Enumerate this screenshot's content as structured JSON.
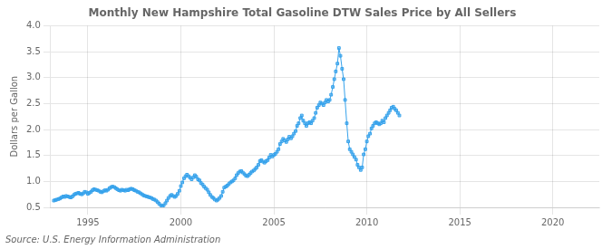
{
  "chart_data": {
    "type": "line",
    "title": "Monthly New Hampshire Total Gasoline DTW Sales Price by All Sellers",
    "ylabel": "Dollars per Gallon",
    "annotation": "Source: U.S. Energy Information Administration",
    "marker": "square",
    "line_style": "solid",
    "grid": true,
    "xlim": [
      1993.0,
      2022.5
    ],
    "xticks": [
      1995,
      2000,
      2005,
      2010,
      2015,
      2020
    ],
    "ylim": [
      0.5,
      4.0
    ],
    "yticks": [
      0.5,
      {
        "value": 1.0,
        "label": "1.0"
      },
      1.5,
      {
        "value": 2.0,
        "label": "2.0"
      },
      2.5,
      {
        "value": 3.0,
        "label": "3.0"
      },
      3.5,
      {
        "value": 4.0,
        "label": "4.0"
      }
    ],
    "x": [
      1993.17,
      1993.25,
      1993.33,
      1993.42,
      1993.5,
      1993.58,
      1993.67,
      1993.75,
      1993.83,
      1993.92,
      1994.0,
      1994.08,
      1994.17,
      1994.25,
      1994.33,
      1994.42,
      1994.5,
      1994.58,
      1994.67,
      1994.75,
      1994.83,
      1994.92,
      1995.0,
      1995.08,
      1995.17,
      1995.25,
      1995.33,
      1995.42,
      1995.5,
      1995.58,
      1995.67,
      1995.75,
      1995.83,
      1995.92,
      1996.0,
      1996.08,
      1996.17,
      1996.25,
      1996.33,
      1996.42,
      1996.5,
      1996.58,
      1996.67,
      1996.75,
      1996.83,
      1996.92,
      1997.0,
      1997.08,
      1997.17,
      1997.25,
      1997.33,
      1997.42,
      1997.5,
      1997.58,
      1997.67,
      1997.75,
      1997.83,
      1997.92,
      1998.0,
      1998.08,
      1998.17,
      1998.25,
      1998.33,
      1998.42,
      1998.5,
      1998.58,
      1998.67,
      1998.75,
      1998.83,
      1998.92,
      1999.0,
      1999.08,
      1999.17,
      1999.25,
      1999.33,
      1999.42,
      1999.5,
      1999.58,
      1999.67,
      1999.75,
      1999.83,
      1999.92,
      2000.0,
      2000.08,
      2000.17,
      2000.25,
      2000.33,
      2000.42,
      2000.5,
      2000.58,
      2000.67,
      2000.75,
      2000.83,
      2000.92,
      2001.0,
      2001.08,
      2001.17,
      2001.25,
      2001.33,
      2001.42,
      2001.5,
      2001.58,
      2001.67,
      2001.75,
      2001.83,
      2001.92,
      2002.0,
      2002.08,
      2002.17,
      2002.25,
      2002.33,
      2002.42,
      2002.5,
      2002.58,
      2002.67,
      2002.75,
      2002.83,
      2002.92,
      2003.0,
      2003.08,
      2003.17,
      2003.25,
      2003.33,
      2003.42,
      2003.5,
      2003.58,
      2003.67,
      2003.75,
      2003.83,
      2003.92,
      2004.0,
      2004.08,
      2004.17,
      2004.25,
      2004.33,
      2004.42,
      2004.5,
      2004.58,
      2004.67,
      2004.75,
      2004.83,
      2004.92,
      2005.0,
      2005.08,
      2005.17,
      2005.25,
      2005.33,
      2005.42,
      2005.5,
      2005.58,
      2005.67,
      2005.75,
      2005.83,
      2005.92,
      2006.0,
      2006.08,
      2006.17,
      2006.25,
      2006.33,
      2006.42,
      2006.5,
      2006.58,
      2006.67,
      2006.75,
      2006.83,
      2006.92,
      2007.0,
      2007.08,
      2007.17,
      2007.25,
      2007.33,
      2007.42,
      2007.5,
      2007.58,
      2007.67,
      2007.75,
      2007.83,
      2007.92,
      2008.0,
      2008.08,
      2008.17,
      2008.25,
      2008.33,
      2008.42,
      2008.5,
      2008.58,
      2008.67,
      2008.75,
      2008.83,
      2008.92,
      2009.0,
      2009.08,
      2009.17,
      2009.25,
      2009.33,
      2009.42,
      2009.5,
      2009.58,
      2009.67,
      2009.75,
      2009.83,
      2009.92,
      2010.0,
      2010.08,
      2010.17,
      2010.25,
      2010.33,
      2010.42,
      2010.5,
      2010.58,
      2010.67,
      2010.75,
      2010.83,
      2010.92,
      2011.0,
      2011.08,
      2011.17,
      2011.25,
      2011.33,
      2011.42,
      2011.5,
      2011.58,
      2011.67,
      2011.75
    ],
    "values": [
      0.63,
      0.64,
      0.65,
      0.66,
      0.67,
      0.69,
      0.71,
      0.7,
      0.72,
      0.71,
      0.7,
      0.69,
      0.71,
      0.74,
      0.76,
      0.77,
      0.78,
      0.76,
      0.75,
      0.77,
      0.8,
      0.79,
      0.76,
      0.78,
      0.8,
      0.83,
      0.85,
      0.84,
      0.83,
      0.82,
      0.8,
      0.79,
      0.81,
      0.83,
      0.82,
      0.84,
      0.87,
      0.89,
      0.9,
      0.89,
      0.87,
      0.85,
      0.83,
      0.82,
      0.84,
      0.83,
      0.82,
      0.84,
      0.83,
      0.85,
      0.86,
      0.85,
      0.83,
      0.82,
      0.8,
      0.79,
      0.77,
      0.75,
      0.73,
      0.72,
      0.71,
      0.7,
      0.69,
      0.68,
      0.66,
      0.65,
      0.63,
      0.6,
      0.57,
      0.54,
      0.52,
      0.54,
      0.58,
      0.63,
      0.68,
      0.72,
      0.74,
      0.72,
      0.7,
      0.72,
      0.76,
      0.82,
      0.91,
      0.98,
      1.06,
      1.1,
      1.13,
      1.1,
      1.07,
      1.04,
      1.08,
      1.12,
      1.09,
      1.04,
      1.02,
      0.97,
      0.94,
      0.9,
      0.87,
      0.84,
      0.79,
      0.74,
      0.7,
      0.68,
      0.65,
      0.63,
      0.65,
      0.68,
      0.72,
      0.8,
      0.88,
      0.9,
      0.92,
      0.95,
      0.98,
      1.0,
      1.02,
      1.06,
      1.12,
      1.16,
      1.19,
      1.2,
      1.17,
      1.14,
      1.11,
      1.1,
      1.13,
      1.16,
      1.19,
      1.21,
      1.24,
      1.27,
      1.32,
      1.39,
      1.41,
      1.38,
      1.36,
      1.39,
      1.41,
      1.46,
      1.51,
      1.48,
      1.51,
      1.53,
      1.57,
      1.62,
      1.72,
      1.77,
      1.82,
      1.79,
      1.76,
      1.81,
      1.86,
      1.83,
      1.87,
      1.92,
      1.97,
      2.07,
      2.12,
      2.22,
      2.27,
      2.17,
      2.12,
      2.07,
      2.12,
      2.14,
      2.12,
      2.17,
      2.22,
      2.32,
      2.42,
      2.47,
      2.52,
      2.5,
      2.47,
      2.52,
      2.57,
      2.54,
      2.57,
      2.67,
      2.82,
      2.97,
      3.12,
      3.27,
      3.57,
      3.42,
      3.17,
      2.97,
      2.57,
      2.12,
      1.77,
      1.62,
      1.57,
      1.52,
      1.47,
      1.42,
      1.32,
      1.27,
      1.22,
      1.27,
      1.52,
      1.62,
      1.77,
      1.87,
      1.92,
      2.02,
      2.07,
      2.12,
      2.14,
      2.12,
      2.1,
      2.12,
      2.17,
      2.14,
      2.22,
      2.27,
      2.32,
      2.37,
      2.42,
      2.44,
      2.4,
      2.37,
      2.32,
      2.27
    ]
  }
}
